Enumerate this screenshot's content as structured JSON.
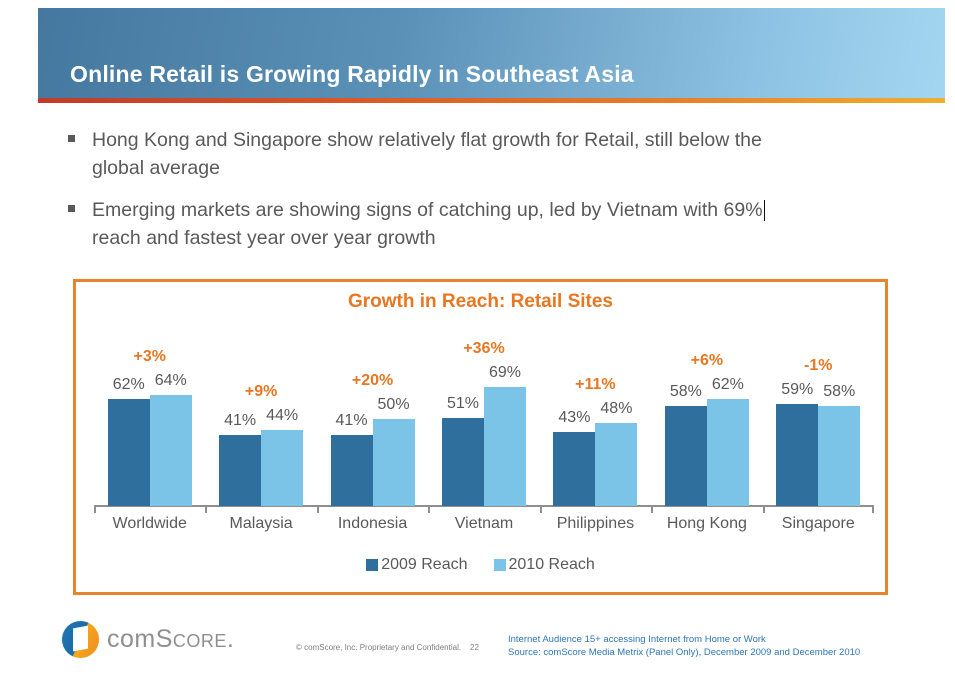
{
  "header": {
    "title": "Online Retail is Growing Rapidly in Southeast Asia"
  },
  "bullets": [
    {
      "line1": "Hong Kong and Singapore show relatively flat growth for Retail, still below the",
      "line2": "global average"
    },
    {
      "line1": "Emerging markets are showing signs of catching up, led by Vietnam with 69%",
      "line2": "reach and fastest year over year growth"
    }
  ],
  "chart_data": {
    "type": "bar",
    "title": "Growth in Reach: Retail Sites",
    "categories": [
      "Worldwide",
      "Malaysia",
      "Indonesia",
      "Vietnam",
      "Philippines",
      "Hong Kong",
      "Singapore"
    ],
    "series": [
      {
        "name": "2009 Reach",
        "values": [
          62,
          41,
          41,
          51,
          43,
          58,
          59
        ]
      },
      {
        "name": "2010 Reach",
        "values": [
          64,
          44,
          50,
          69,
          48,
          62,
          58
        ]
      }
    ],
    "growth_labels": [
      "+3%",
      "+9%",
      "+20%",
      "+36%",
      "+11%",
      "+6%",
      "-1%"
    ],
    "unit": "%",
    "ylim": [
      0,
      100
    ],
    "grid": false,
    "legend_position": "bottom",
    "colors": {
      "series_2009": "#2e6f9e",
      "series_2010": "#7cc3e8",
      "growth_label": "#e87722",
      "value_label": "#595959",
      "box_border": "#e8832e"
    }
  },
  "footer": {
    "logo_prefix": "com",
    "logo_suffix": "Score.",
    "copyright": "© comScore, Inc.  Proprietary and Confidential.",
    "page_number": "22",
    "source_line1": "Internet Audience 15+ accessing Internet from Home or Work",
    "source_line2": "Source:  comScore Media Metrix (Panel Only), December 2009 and December 2010"
  }
}
